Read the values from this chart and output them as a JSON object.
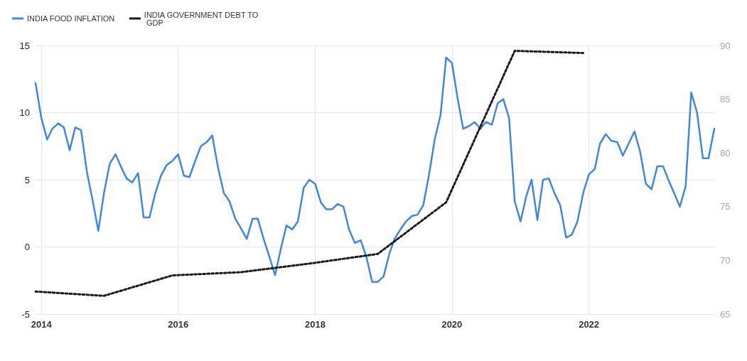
{
  "chart_data": {
    "type": "line",
    "x": [
      "2013-12",
      "2014-01",
      "2014-02",
      "2014-03",
      "2014-04",
      "2014-05",
      "2014-06",
      "2014-07",
      "2014-08",
      "2014-09",
      "2014-10",
      "2014-11",
      "2014-12",
      "2015-01",
      "2015-02",
      "2015-03",
      "2015-04",
      "2015-05",
      "2015-06",
      "2015-07",
      "2015-08",
      "2015-09",
      "2015-10",
      "2015-11",
      "2015-12",
      "2016-01",
      "2016-02",
      "2016-03",
      "2016-04",
      "2016-05",
      "2016-06",
      "2016-07",
      "2016-08",
      "2016-09",
      "2016-10",
      "2016-11",
      "2016-12",
      "2017-01",
      "2017-02",
      "2017-03",
      "2017-04",
      "2017-05",
      "2017-06",
      "2017-07",
      "2017-08",
      "2017-09",
      "2017-10",
      "2017-11",
      "2017-12",
      "2018-01",
      "2018-02",
      "2018-03",
      "2018-04",
      "2018-05",
      "2018-06",
      "2018-07",
      "2018-08",
      "2018-09",
      "2018-10",
      "2018-11",
      "2018-12",
      "2019-01",
      "2019-02",
      "2019-03",
      "2019-04",
      "2019-05",
      "2019-06",
      "2019-07",
      "2019-08",
      "2019-09",
      "2019-10",
      "2019-11",
      "2019-12",
      "2020-01",
      "2020-02",
      "2020-03",
      "2020-04",
      "2020-05",
      "2020-06",
      "2020-07",
      "2020-08",
      "2020-09",
      "2020-10",
      "2020-11",
      "2020-12",
      "2021-01",
      "2021-02",
      "2021-03",
      "2021-04",
      "2021-05",
      "2021-06",
      "2021-07",
      "2021-08",
      "2021-09",
      "2021-10",
      "2021-11",
      "2021-12",
      "2022-01",
      "2022-02",
      "2022-03",
      "2022-04",
      "2022-05",
      "2022-06",
      "2022-07",
      "2022-08",
      "2022-09",
      "2022-10",
      "2022-11",
      "2022-12",
      "2023-01",
      "2023-02",
      "2023-03",
      "2023-04",
      "2023-05",
      "2023-06",
      "2023-07",
      "2023-08",
      "2023-09",
      "2023-10",
      "2023-11"
    ],
    "series": [
      {
        "name": "INDIA FOOD INFLATION",
        "color": "#3f87e5",
        "values": [
          12.2,
          9.6,
          8.0,
          8.8,
          9.2,
          8.9,
          7.2,
          8.9,
          8.7,
          5.6,
          3.5,
          1.2,
          4.0,
          6.2,
          6.9,
          6.0,
          5.1,
          4.8,
          5.5,
          2.2,
          2.2,
          4.0,
          5.3,
          6.1,
          6.4,
          6.9,
          5.3,
          5.2,
          6.4,
          7.5,
          7.8,
          8.3,
          5.9,
          4.0,
          3.4,
          2.1,
          1.4,
          0.6,
          2.1,
          2.1,
          0.6,
          -0.7,
          -2.1,
          -0.2,
          1.6,
          1.3,
          1.9,
          4.4,
          5.0,
          4.7,
          3.3,
          2.8,
          2.8,
          3.2,
          3.0,
          1.3,
          0.3,
          0.5,
          -0.7,
          -2.6,
          -2.6,
          -2.2,
          -0.5,
          0.6,
          1.3,
          1.9,
          2.3,
          2.4,
          3.1,
          5.4,
          8.0,
          9.8,
          14.1,
          13.7,
          11.0,
          8.8,
          9.0,
          9.3,
          8.8,
          9.3,
          9.1,
          10.7,
          11.0,
          9.6,
          3.4,
          1.9,
          3.8,
          5.0,
          2.0,
          5.0,
          5.1,
          4.0,
          3.1,
          0.7,
          0.9,
          1.9,
          4.0,
          5.4,
          5.8,
          7.7,
          8.4,
          7.9,
          7.8,
          6.8,
          7.7,
          8.6,
          7.1,
          4.7,
          4.3,
          6.0,
          6.0,
          5.0,
          4.0,
          3.0,
          4.5,
          11.5,
          10.0,
          6.6,
          6.6,
          8.8
        ]
      },
      {
        "name": "INDIA GOVERNMENT DEBT TO GDP",
        "color": "#1a1a1a",
        "axis": "y2",
        "line_style": "dotted",
        "x": [
          "2013-12",
          "2014-12",
          "2015-12",
          "2016-12",
          "2017-12",
          "2018-12",
          "2019-12",
          "2020-12",
          "2021-12"
        ],
        "values": [
          67.1,
          66.7,
          68.6,
          68.9,
          69.7,
          70.6,
          75.4,
          89.5,
          89.3
        ]
      }
    ],
    "xlim": [
      "2013-12",
      "2023-11"
    ],
    "xticks": [
      "2014",
      "2016",
      "2018",
      "2020",
      "2022"
    ],
    "ylim": [
      -5,
      15
    ],
    "yticks": [
      -5,
      0,
      5,
      10,
      15
    ],
    "y2lim": [
      65,
      90
    ],
    "y2ticks": [
      65,
      70,
      75,
      80,
      85,
      90
    ],
    "grid": true,
    "legend": "top left",
    "marker": "none"
  }
}
